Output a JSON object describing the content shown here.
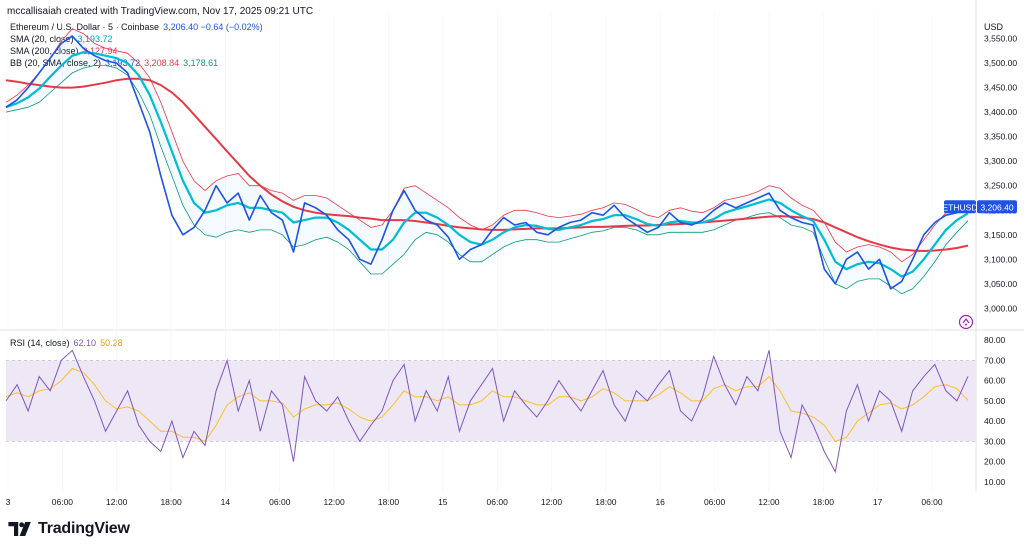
{
  "header": {
    "attribution": "mccallisaiah created with TradingView.com, Nov 17, 2025 09:21 UTC"
  },
  "legend": {
    "symbol": {
      "label": "Ethereum / U.S. Dollar · 5 · Coinbase",
      "values": "3,206.40 −0.64 (−0.02%)"
    },
    "sma20": {
      "label": "SMA (20, close)",
      "value": "3,193.72"
    },
    "sma200": {
      "label": "SMA (200, close)",
      "value": "3,127.94"
    },
    "bb": {
      "label": "BB (20, SMA, close, 2)",
      "values": [
        "3,193.72",
        "3,208.84",
        "3,178.61"
      ]
    },
    "rsi": {
      "label": "RSI (14, close)",
      "values": [
        "62.10",
        "50.28"
      ]
    }
  },
  "price_axis": {
    "currency": "USD",
    "ticks": [
      "3,550.00",
      "3,500.00",
      "3,450.00",
      "3,400.00",
      "3,350.00",
      "3,300.00",
      "3,250.00",
      "3,200.00",
      "3,150.00",
      "3,100.00",
      "3,050.00",
      "3,000.00"
    ]
  },
  "last_price_tag": {
    "symbol": "ETHUSD",
    "value": "3,206.40"
  },
  "rsi_axis": {
    "ticks": [
      "80.00",
      "70.00",
      "60.00",
      "50.00",
      "40.00",
      "30.00",
      "20.00",
      "10.00"
    ]
  },
  "time_axis": {
    "ticks": [
      "3",
      "06:00",
      "12:00",
      "18:00",
      "14",
      "06:00",
      "12:00",
      "18:00",
      "15",
      "06:00",
      "12:00",
      "18:00",
      "16",
      "06:00",
      "12:00",
      "18:00",
      "17",
      "06:00"
    ]
  },
  "brand": {
    "name": "TradingView"
  },
  "colors": {
    "price": "#1e53e5",
    "sma20": "#00bcd4",
    "sma200": "#e53947",
    "bb_upper": "#f23645",
    "bb_lower": "#089981",
    "rsi": "#7e57c2",
    "rsi_ma": "#fbc02d",
    "rsi_band": "#ede7f6",
    "last_tag": "#1e53e5"
  },
  "chart_data": [
    {
      "type": "line",
      "ylabel": "USD",
      "ylim": [
        2960,
        3600
      ],
      "x": [
        0,
        1,
        2,
        3,
        4,
        5,
        6,
        7,
        8,
        9,
        10,
        11,
        12,
        13,
        14,
        15,
        16,
        17,
        18,
        19,
        20,
        21,
        22,
        23,
        24,
        25,
        26,
        27,
        28,
        29,
        30,
        31,
        32,
        33,
        34,
        35,
        36,
        37,
        38,
        39,
        40,
        41,
        42,
        43,
        44,
        45,
        46,
        47,
        48,
        49,
        50,
        51,
        52,
        53,
        54,
        55,
        56,
        57,
        58,
        59,
        60,
        61,
        62,
        63,
        64,
        65,
        66,
        67,
        68,
        69,
        70,
        71,
        72,
        73,
        74,
        75,
        76,
        77,
        78,
        79,
        80,
        81,
        82,
        83,
        84,
        85,
        86,
        87
      ],
      "series": [
        {
          "name": "ETHUSD",
          "values": [
            3410,
            3425,
            3450,
            3480,
            3510,
            3540,
            3555,
            3530,
            3515,
            3505,
            3500,
            3480,
            3420,
            3360,
            3270,
            3190,
            3150,
            3165,
            3200,
            3250,
            3215,
            3235,
            3180,
            3230,
            3195,
            3180,
            3115,
            3215,
            3205,
            3190,
            3160,
            3140,
            3100,
            3090,
            3140,
            3200,
            3240,
            3200,
            3180,
            3170,
            3145,
            3100,
            3120,
            3130,
            3160,
            3185,
            3170,
            3175,
            3155,
            3150,
            3165,
            3175,
            3180,
            3195,
            3190,
            3210,
            3185,
            3170,
            3155,
            3165,
            3195,
            3175,
            3170,
            3180,
            3200,
            3215,
            3205,
            3215,
            3225,
            3235,
            3200,
            3185,
            3175,
            3170,
            3080,
            3050,
            3100,
            3115,
            3080,
            3100,
            3040,
            3055,
            3100,
            3150,
            3175,
            3190,
            3195,
            3206
          ]
        },
        {
          "name": "SMA (20, close)",
          "values": [
            3410,
            3418,
            3430,
            3448,
            3472,
            3495,
            3515,
            3522,
            3520,
            3515,
            3510,
            3500,
            3475,
            3435,
            3380,
            3320,
            3260,
            3215,
            3195,
            3200,
            3210,
            3215,
            3205,
            3205,
            3200,
            3195,
            3175,
            3180,
            3185,
            3185,
            3175,
            3160,
            3140,
            3120,
            3120,
            3140,
            3175,
            3195,
            3195,
            3185,
            3170,
            3150,
            3135,
            3130,
            3140,
            3155,
            3165,
            3170,
            3168,
            3162,
            3160,
            3165,
            3170,
            3178,
            3182,
            3190,
            3190,
            3182,
            3172,
            3168,
            3175,
            3178,
            3175,
            3175,
            3182,
            3195,
            3202,
            3208,
            3215,
            3222,
            3215,
            3200,
            3188,
            3178,
            3140,
            3095,
            3080,
            3090,
            3095,
            3092,
            3080,
            3065,
            3075,
            3100,
            3130,
            3160,
            3180,
            3193.72
          ]
        },
        {
          "name": "SMA (200, close)",
          "values": [
            3465,
            3462,
            3458,
            3455,
            3452,
            3450,
            3450,
            3452,
            3456,
            3460,
            3465,
            3468,
            3468,
            3465,
            3455,
            3440,
            3420,
            3395,
            3370,
            3345,
            3320,
            3295,
            3270,
            3250,
            3232,
            3218,
            3207,
            3200,
            3195,
            3192,
            3190,
            3188,
            3185,
            3183,
            3180,
            3180,
            3180,
            3178,
            3175,
            3172,
            3168,
            3165,
            3163,
            3161,
            3160,
            3160,
            3161,
            3162,
            3163,
            3163,
            3163,
            3164,
            3165,
            3166,
            3166,
            3167,
            3168,
            3169,
            3169,
            3170,
            3171,
            3172,
            3173,
            3175,
            3177,
            3179,
            3181,
            3183,
            3185,
            3187,
            3188,
            3187,
            3185,
            3182,
            3175,
            3165,
            3155,
            3145,
            3137,
            3130,
            3124,
            3120,
            3118,
            3117,
            3118,
            3120,
            3123,
            3127.94
          ]
        },
        {
          "name": "BB upper",
          "values": [
            3420,
            3435,
            3455,
            3480,
            3510,
            3545,
            3570,
            3560,
            3540,
            3530,
            3525,
            3520,
            3500,
            3470,
            3420,
            3360,
            3300,
            3260,
            3240,
            3260,
            3270,
            3275,
            3250,
            3250,
            3240,
            3235,
            3220,
            3230,
            3230,
            3225,
            3210,
            3195,
            3180,
            3165,
            3170,
            3200,
            3245,
            3250,
            3235,
            3220,
            3205,
            3185,
            3170,
            3160,
            3170,
            3190,
            3200,
            3200,
            3195,
            3188,
            3185,
            3188,
            3192,
            3200,
            3205,
            3215,
            3212,
            3202,
            3190,
            3185,
            3200,
            3205,
            3198,
            3195,
            3205,
            3220,
            3225,
            3230,
            3238,
            3250,
            3245,
            3225,
            3210,
            3200,
            3175,
            3135,
            3115,
            3125,
            3130,
            3125,
            3115,
            3095,
            3110,
            3140,
            3170,
            3195,
            3205,
            3208.84
          ]
        },
        {
          "name": "BB lower",
          "values": [
            3400,
            3405,
            3410,
            3420,
            3440,
            3460,
            3480,
            3490,
            3495,
            3495,
            3490,
            3475,
            3440,
            3395,
            3330,
            3270,
            3210,
            3170,
            3150,
            3145,
            3155,
            3160,
            3155,
            3160,
            3160,
            3150,
            3125,
            3130,
            3140,
            3145,
            3135,
            3120,
            3095,
            3070,
            3070,
            3090,
            3110,
            3140,
            3155,
            3150,
            3135,
            3110,
            3095,
            3095,
            3110,
            3125,
            3135,
            3140,
            3140,
            3135,
            3135,
            3142,
            3148,
            3155,
            3158,
            3165,
            3165,
            3160,
            3150,
            3150,
            3155,
            3155,
            3155,
            3155,
            3160,
            3170,
            3180,
            3185,
            3192,
            3195,
            3185,
            3170,
            3165,
            3155,
            3100,
            3050,
            3040,
            3055,
            3060,
            3060,
            3045,
            3030,
            3040,
            3065,
            3095,
            3130,
            3155,
            3178.61
          ]
        }
      ]
    },
    {
      "type": "line",
      "ylabel": "RSI",
      "ylim": [
        5,
        85
      ],
      "x": [
        0,
        1,
        2,
        3,
        4,
        5,
        6,
        7,
        8,
        9,
        10,
        11,
        12,
        13,
        14,
        15,
        16,
        17,
        18,
        19,
        20,
        21,
        22,
        23,
        24,
        25,
        26,
        27,
        28,
        29,
        30,
        31,
        32,
        33,
        34,
        35,
        36,
        37,
        38,
        39,
        40,
        41,
        42,
        43,
        44,
        45,
        46,
        47,
        48,
        49,
        50,
        51,
        52,
        53,
        54,
        55,
        56,
        57,
        58,
        59,
        60,
        61,
        62,
        63,
        64,
        65,
        66,
        67,
        68,
        69,
        70,
        71,
        72,
        73,
        74,
        75,
        76,
        77,
        78,
        79,
        80,
        81,
        82,
        83,
        84,
        85,
        86,
        87
      ],
      "series": [
        {
          "name": "RSI (14, close)",
          "values": [
            50,
            58,
            45,
            62,
            55,
            70,
            75,
            62,
            50,
            35,
            45,
            55,
            38,
            30,
            25,
            40,
            22,
            35,
            28,
            55,
            70,
            45,
            60,
            35,
            55,
            48,
            20,
            62,
            50,
            45,
            52,
            40,
            30,
            38,
            45,
            60,
            68,
            40,
            55,
            45,
            62,
            35,
            50,
            58,
            66,
            40,
            55,
            48,
            42,
            50,
            60,
            52,
            45,
            55,
            65,
            48,
            40,
            55,
            50,
            58,
            65,
            45,
            40,
            52,
            72,
            58,
            48,
            62,
            55,
            75,
            35,
            22,
            48,
            38,
            25,
            15,
            45,
            58,
            40,
            55,
            50,
            35,
            55,
            62,
            68,
            55,
            50,
            62.1
          ]
        },
        {
          "name": "RSI MA",
          "values": [
            52,
            54,
            52,
            55,
            56,
            60,
            66,
            64,
            58,
            50,
            46,
            47,
            45,
            40,
            35,
            35,
            32,
            32,
            30,
            38,
            48,
            52,
            54,
            50,
            50,
            49,
            42,
            46,
            48,
            48,
            49,
            46,
            42,
            40,
            42,
            48,
            55,
            52,
            52,
            50,
            52,
            48,
            48,
            50,
            55,
            52,
            52,
            50,
            48,
            48,
            52,
            52,
            50,
            52,
            56,
            54,
            50,
            50,
            50,
            53,
            57,
            54,
            50,
            50,
            56,
            58,
            55,
            57,
            57,
            62,
            55,
            45,
            44,
            42,
            38,
            30,
            32,
            40,
            44,
            48,
            49,
            46,
            48,
            52,
            57,
            58,
            56,
            50.28
          ]
        }
      ]
    }
  ]
}
